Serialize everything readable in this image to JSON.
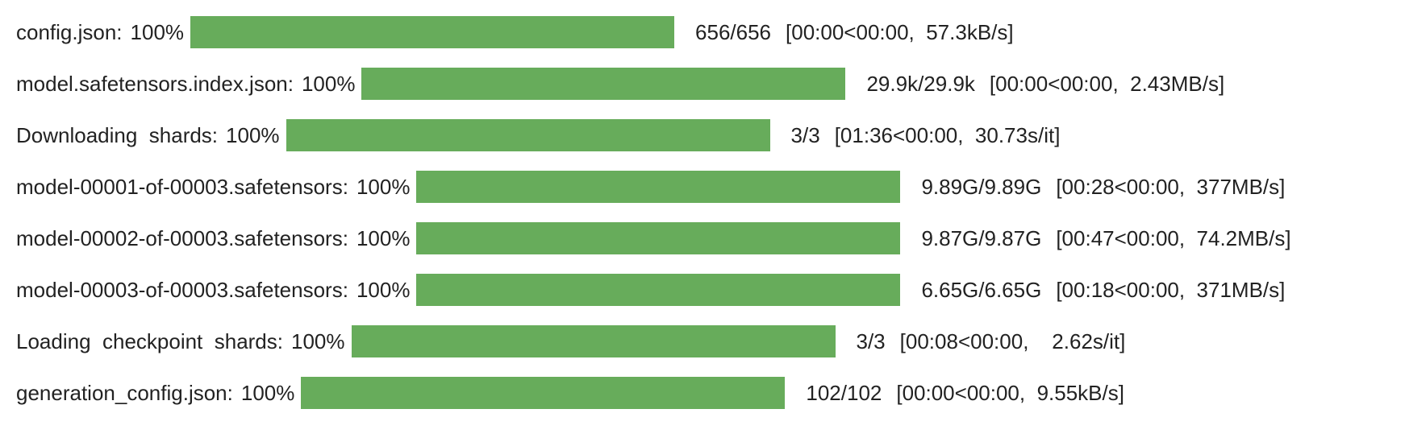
{
  "progress_bars": [
    {
      "label": "config.json:",
      "progress": {
        "value": 100,
        "label": "100%"
      },
      "count": "656/656",
      "timing": "[00:00<00:00,  57.3kB/s]"
    },
    {
      "label": "model.safetensors.index.json:",
      "progress": {
        "value": 100,
        "label": "100%"
      },
      "count": "29.9k/29.9k",
      "timing": "[00:00<00:00,  2.43MB/s]"
    },
    {
      "label": "Downloading  shards:",
      "progress": {
        "value": 100,
        "label": "100%"
      },
      "count": "3/3",
      "timing": "[01:36<00:00,  30.73s/it]"
    },
    {
      "label": "model-00001-of-00003.safetensors:",
      "progress": {
        "value": 100,
        "label": "100%"
      },
      "count": "9.89G/9.89G",
      "timing": "[00:28<00:00,  377MB/s]"
    },
    {
      "label": "model-00002-of-00003.safetensors:",
      "progress": {
        "value": 100,
        "label": "100%"
      },
      "count": "9.87G/9.87G",
      "timing": "[00:47<00:00,  74.2MB/s]"
    },
    {
      "label": "model-00003-of-00003.safetensors:",
      "progress": {
        "value": 100,
        "label": "100%"
      },
      "count": "6.65G/6.65G",
      "timing": "[00:18<00:00,  371MB/s]"
    },
    {
      "label": "Loading  checkpoint  shards:",
      "progress": {
        "value": 100,
        "label": "100%"
      },
      "count": "3/3",
      "timing": "[00:08<00:00,    2.62s/it]"
    },
    {
      "label": "generation_config.json:",
      "progress": {
        "value": 100,
        "label": "100%"
      },
      "count": "102/102",
      "timing": "[00:00<00:00,  9.55kB/s]"
    }
  ]
}
